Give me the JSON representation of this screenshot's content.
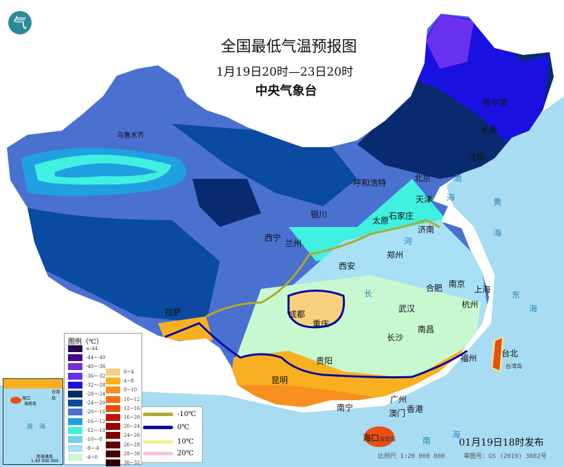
{
  "header": {
    "title": "全国最低气温预报图",
    "period": "1月19日20时—23日20时",
    "agency": "中央气象台",
    "logo_icon": "cma-logo"
  },
  "cities": {
    "urumqi": "乌鲁木齐",
    "lhasa": "拉萨",
    "xining": "西宁",
    "lanzhou": "兰州",
    "yinchuan": "银川",
    "hohhot": "呼和浩特",
    "beijing": "北京",
    "tianjin": "天津",
    "shijiazhuang": "石家庄",
    "taiyuan": "太原",
    "jinan": "济南",
    "xian": "西安",
    "zhengzhou": "郑州",
    "chengdu": "成都",
    "chongqing": "重庆",
    "wuhan": "武汉",
    "hefei": "合肥",
    "nanjing": "南京",
    "shanghai": "上海",
    "hangzhou": "杭州",
    "changsha": "长沙",
    "nanchang": "南昌",
    "guiyang": "贵阳",
    "kunming": "昆明",
    "nanning": "南宁",
    "guangzhou": "广州",
    "macau": "澳门",
    "hongkong": "香港",
    "fuzhou": "福州",
    "taipei": "台北",
    "haikou": "海口",
    "harbin": "哈尔滨",
    "changchun": "长春",
    "shenyang": "沈阳"
  },
  "seas": {
    "bo": "渤",
    "bo2": "海",
    "huang": "黄",
    "huang2": "海",
    "dong": "东",
    "dong2": "海",
    "nan": "南",
    "nan2": "海",
    "hainan_island": "海南岛",
    "taiwan_island": "台湾岛",
    "river_he": "河",
    "river_chang": "长"
  },
  "legend": {
    "title": "图例（℃）",
    "items_left": [
      {
        "label": "≤-44",
        "color": "#2a0a4a"
      },
      {
        "label": "-44~-40",
        "color": "#4a0a8a"
      },
      {
        "label": "-40~-36",
        "color": "#7a30d0"
      },
      {
        "label": "-36~-32",
        "color": "#6a30f0"
      },
      {
        "label": "-32~-28",
        "color": "#1a10e0"
      },
      {
        "label": "-28~-24",
        "color": "#0a2a70"
      },
      {
        "label": "-24~-20",
        "color": "#0a4aa0"
      },
      {
        "label": "-20~-16",
        "color": "#4a70d0"
      },
      {
        "label": "-16~-12",
        "color": "#20a0e0"
      },
      {
        "label": "-12~-10",
        "color": "#40f0e0"
      },
      {
        "label": "-10~-8",
        "color": "#70d0f0"
      },
      {
        "label": "-8~-4",
        "color": "#a8e0f5"
      },
      {
        "label": "-4~0",
        "color": "#c8f8d0"
      }
    ],
    "items_right": [
      {
        "label": "0~4",
        "color": "#f8d080"
      },
      {
        "label": "4~8",
        "color": "#f8b020"
      },
      {
        "label": "8~10",
        "color": "#f89020"
      },
      {
        "label": "10~12",
        "color": "#f87010"
      },
      {
        "label": "12~16",
        "color": "#e85010"
      },
      {
        "label": "16~20",
        "color": "#c01010"
      },
      {
        "label": "20~24",
        "color": "#a00000"
      },
      {
        "label": "24~26",
        "color": "#800000"
      },
      {
        "label": "26~28",
        "color": "#600000"
      },
      {
        "label": "28~30",
        "color": "#480000"
      },
      {
        "label": "30~32",
        "color": "#300000"
      }
    ]
  },
  "isolines": [
    {
      "label": "-10℃",
      "color": "#b0a830"
    },
    {
      "label": "0℃",
      "color": "#0a0aa0"
    },
    {
      "label": "10℃",
      "color": "#f0f090"
    },
    {
      "label": "20℃",
      "color": "#f8c0e0"
    }
  ],
  "inset": {
    "haikou": "海口",
    "hainan": "海南岛",
    "taiwan": "台湾岛",
    "sea": "南　海",
    "islands": "南海诸岛",
    "scale": "1:40 000 000"
  },
  "footer": {
    "issued": "01月19日18时发布",
    "scale": "比例尺 1:20 000 000",
    "approval": "审图号：GS (2019) 3082号"
  }
}
